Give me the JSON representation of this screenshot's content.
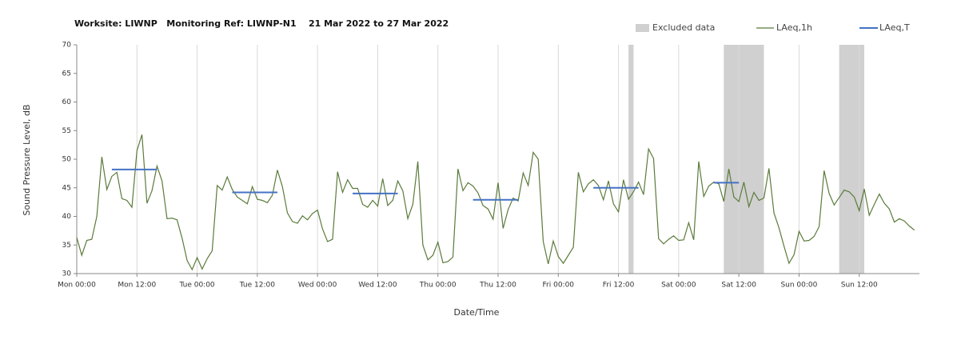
{
  "chart_data": {
    "type": "line",
    "title": "Worksite: LIWNP   Monitoring Ref: LIWNP-N1    21 Mar 2022 to 27 Mar 2022",
    "xlabel": "Date/Time",
    "ylabel": "Sound Pressure Level, dB",
    "xlim": [
      0,
      168
    ],
    "xticks": [
      {
        "value": 0,
        "label": "Mon 00:00"
      },
      {
        "value": 12,
        "label": "Mon 12:00"
      },
      {
        "value": 24,
        "label": "Tue 00:00"
      },
      {
        "value": 36,
        "label": "Tue 12:00"
      },
      {
        "value": 48,
        "label": "Wed 00:00"
      },
      {
        "value": 60,
        "label": "Wed 12:00"
      },
      {
        "value": 72,
        "label": "Thu 00:00"
      },
      {
        "value": 84,
        "label": "Thu 12:00"
      },
      {
        "value": 96,
        "label": "Fri 00:00"
      },
      {
        "value": 108,
        "label": "Fri 12:00"
      },
      {
        "value": 120,
        "label": "Sat 00:00"
      },
      {
        "value": 132,
        "label": "Sat 12:00"
      },
      {
        "value": 144,
        "label": "Sun 00:00"
      },
      {
        "value": 156,
        "label": "Sun 12:00"
      }
    ],
    "ylim": [
      30,
      70
    ],
    "yticks": [
      30,
      35,
      40,
      45,
      50,
      55,
      60,
      65,
      70
    ],
    "grid": "x",
    "excluded": {
      "name": "Excluded data",
      "color": "#d0d0d0",
      "start": [
        110,
        129,
        152
      ],
      "end": [
        111,
        137,
        157
      ]
    },
    "series": [
      {
        "name": "LAeq,1h",
        "color": "#5b7b3b",
        "values": [
          36.3,
          33.2,
          35.8,
          36,
          40,
          50.4,
          44.7,
          47,
          47.7,
          43.1,
          42.8,
          41.6,
          51.5,
          54.3,
          42.3,
          44.5,
          48.8,
          46.2,
          39.6,
          39.7,
          39.4,
          36.2,
          32.3,
          30.7,
          32.8,
          30.8,
          32.6,
          34,
          45.4,
          44.6,
          46.9,
          44.7,
          43.4,
          42.8,
          42.2,
          45.2,
          43,
          42.8,
          42.4,
          43.7,
          48.1,
          45.2,
          40.6,
          39.1,
          38.8,
          40.1,
          39.4,
          40.5,
          41.1,
          37.8,
          35.6,
          36,
          47.8,
          44.2,
          46.4,
          44.9,
          44.9,
          42.1,
          41.6,
          42.8,
          41.8,
          46.6,
          41.9,
          42.8,
          46.2,
          44.5,
          39.6,
          42.1,
          49.6,
          35,
          32.4,
          33.2,
          35.5,
          31.9,
          32.1,
          32.9,
          48.3,
          44.5,
          45.9,
          45.3,
          44.1,
          41.9,
          41.3,
          39.5,
          45.9,
          37.9,
          41.2,
          43.2,
          42.7,
          47.6,
          45.4,
          51.2,
          50,
          35.6,
          31.7,
          35.7,
          33,
          31.8,
          33.2,
          34.6,
          47.7,
          44.3,
          45.7,
          46.4,
          45.4,
          42.9,
          46.2,
          42.2,
          40.8,
          46.4,
          43,
          44.3,
          46,
          43.8,
          51.8,
          50.1,
          36.1,
          35.2,
          36,
          36.6,
          35.8,
          35.9,
          38.9,
          35.9,
          49.6,
          43.5,
          45.3,
          46,
          45.7,
          42.6,
          48.3,
          43.4,
          42.6,
          46,
          41.7,
          44.2,
          42.8,
          43.2,
          48.4,
          40.6,
          38,
          34.8,
          31.8,
          33.3,
          37.4,
          35.7,
          35.8,
          36.5,
          38.2,
          48,
          44,
          42,
          43.3,
          44.6,
          44.3,
          43.4,
          41,
          44.8,
          40.2,
          42.1,
          43.9,
          42.3,
          41.3,
          39,
          39.6,
          39.2,
          38.3,
          37.6
        ]
      }
    ],
    "segments": {
      "name": "LAeq,T",
      "color": "#4472c4",
      "start": [
        7,
        31,
        55,
        79,
        103,
        127
      ],
      "end": [
        16,
        40,
        64,
        88,
        112,
        132
      ],
      "values": [
        48.2,
        44.2,
        44,
        42.9,
        45,
        45.9
      ]
    }
  }
}
